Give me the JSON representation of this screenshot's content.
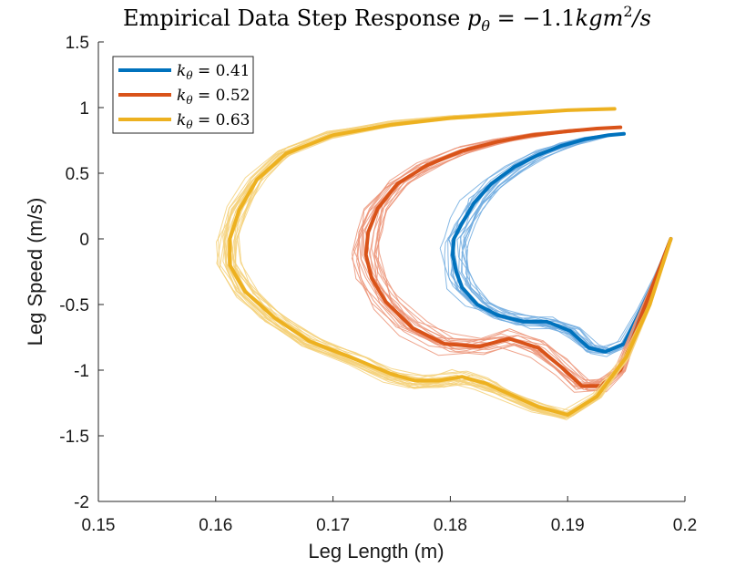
{
  "chart_data": {
    "type": "line",
    "title": "Empirical Data Step Response p_θ = −1.1kgm²/s",
    "title_text": "Empirical Data Step Response ",
    "title_math": "p",
    "title_math_sub": "θ",
    "title_math_rest": " = −1.1",
    "title_math_unit": "kgm",
    "title_math_sup": "2",
    "title_math_tail": "/s",
    "xlabel": "Leg Length (m)",
    "ylabel": "Leg Speed (m/s)",
    "xlim": [
      0.15,
      0.2
    ],
    "ylim": [
      -2,
      1.5
    ],
    "xticks": [
      0.15,
      0.16,
      0.17,
      0.18,
      0.19,
      0.2
    ],
    "xtick_labels": [
      "0.15",
      "0.16",
      "0.17",
      "0.18",
      "0.19",
      "0.2"
    ],
    "yticks": [
      -2,
      -1.5,
      -1,
      -0.5,
      0,
      0.5,
      1,
      1.5
    ],
    "ytick_labels": [
      "-2",
      "-1.5",
      "-1",
      "-0.5",
      "0",
      "0.5",
      "1",
      "1.5"
    ],
    "grid": false,
    "legend_position": "top-left",
    "series": [
      {
        "name": "kθ = 0.41",
        "legend_k": "k",
        "legend_sub": "θ",
        "legend_val": " = 0.41",
        "color": "#0072BD",
        "light_color": "#72ade0",
        "x": [
          0.1948,
          0.1935,
          0.1915,
          0.1895,
          0.1875,
          0.1855,
          0.1835,
          0.182,
          0.181,
          0.1803,
          0.1802,
          0.1805,
          0.181,
          0.1823,
          0.184,
          0.1862,
          0.1882,
          0.1902,
          0.1918,
          0.1932,
          0.1948,
          0.1962,
          0.1975,
          0.1988
        ],
        "y": [
          0.8,
          0.79,
          0.76,
          0.71,
          0.64,
          0.55,
          0.42,
          0.27,
          0.12,
          0.0,
          -0.12,
          -0.25,
          -0.37,
          -0.5,
          -0.58,
          -0.63,
          -0.63,
          -0.7,
          -0.83,
          -0.86,
          -0.8,
          -0.55,
          -0.3,
          0.0
        ]
      },
      {
        "name": "kθ = 0.52",
        "legend_k": "k",
        "legend_sub": "θ",
        "legend_val": " = 0.52",
        "color": "#D95319",
        "light_color": "#ec9478",
        "x": [
          0.1945,
          0.1925,
          0.19,
          0.187,
          0.184,
          0.181,
          0.178,
          0.1755,
          0.1738,
          0.173,
          0.1728,
          0.1733,
          0.1745,
          0.1768,
          0.1795,
          0.1825,
          0.185,
          0.1875,
          0.1895,
          0.1912,
          0.1928,
          0.1945,
          0.196,
          0.1975,
          0.1988
        ],
        "y": [
          0.85,
          0.84,
          0.82,
          0.79,
          0.74,
          0.67,
          0.56,
          0.42,
          0.23,
          0.05,
          -0.12,
          -0.3,
          -0.48,
          -0.68,
          -0.8,
          -0.82,
          -0.76,
          -0.83,
          -0.98,
          -1.12,
          -1.12,
          -1.0,
          -0.65,
          -0.3,
          0.0
        ]
      },
      {
        "name": "kθ = 0.63",
        "legend_k": "k",
        "legend_sub": "θ",
        "legend_val": " = 0.63",
        "color": "#EDB120",
        "light_color": "#f4d17a",
        "x": [
          0.194,
          0.19,
          0.185,
          0.18,
          0.175,
          0.17,
          0.166,
          0.1635,
          0.162,
          0.1612,
          0.1612,
          0.1625,
          0.165,
          0.168,
          0.172,
          0.175,
          0.177,
          0.179,
          0.181,
          0.183,
          0.185,
          0.1875,
          0.19,
          0.1925,
          0.195,
          0.197,
          0.1988
        ],
        "y": [
          0.99,
          0.98,
          0.95,
          0.92,
          0.87,
          0.79,
          0.65,
          0.45,
          0.22,
          0.0,
          -0.2,
          -0.4,
          -0.6,
          -0.78,
          -0.92,
          -1.03,
          -1.08,
          -1.08,
          -1.05,
          -1.1,
          -1.18,
          -1.28,
          -1.34,
          -1.2,
          -0.9,
          -0.5,
          0.0
        ]
      }
    ]
  }
}
